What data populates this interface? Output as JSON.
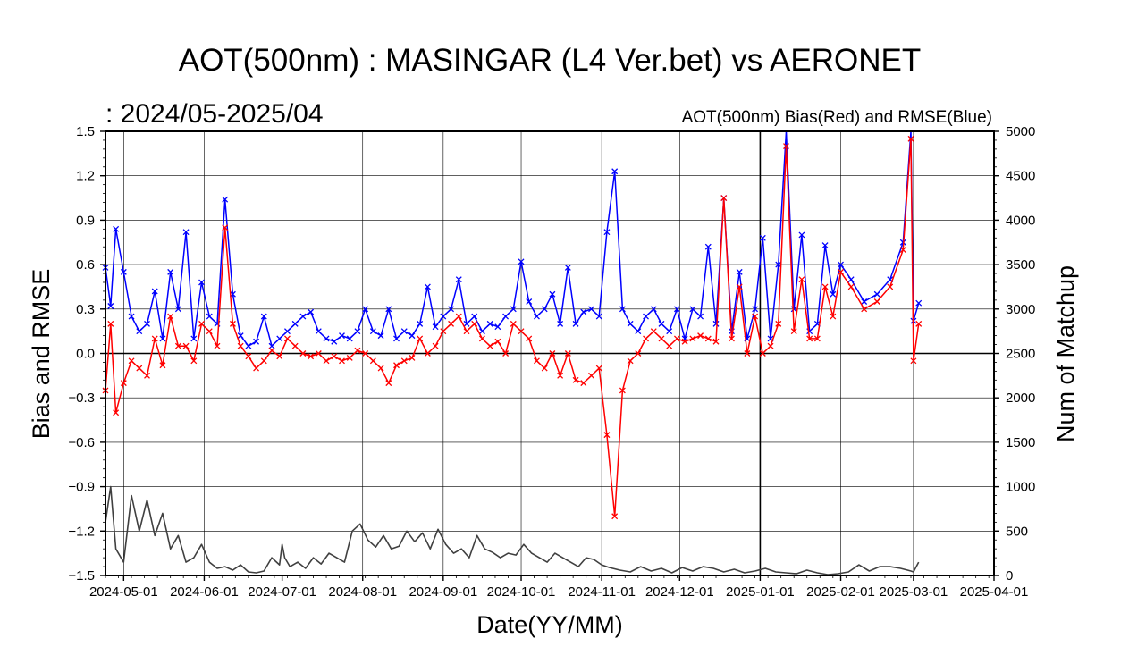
{
  "chart_data": {
    "type": "line",
    "title": "AOT(500nm) : MASINGAR (L4 Ver.bet) vs AERONET",
    "subtitle": ":  2024/05-2025/04",
    "right_label": "AOT(500nm) Bias(Red) and RMSE(Blue)",
    "xlabel": "Date(YY/MM)",
    "ylabel": "Bias and RMSE",
    "y2label": "Num of Matchup",
    "xlim": [
      "2024-04-24",
      "2025-04-01"
    ],
    "ylim": [
      -1.5,
      1.5
    ],
    "y2lim": [
      0,
      5000
    ],
    "yticks": [
      "1.5",
      "1.2",
      "0.9",
      "0.6",
      "0.3",
      "0.0",
      "−0.3",
      "−0.6",
      "−0.9",
      "−1.2",
      "−1.5"
    ],
    "y2ticks": [
      "5000",
      "4500",
      "4000",
      "3500",
      "3000",
      "2500",
      "2000",
      "1500",
      "1000",
      "500",
      "0"
    ],
    "xticks": [
      "2024-05-01",
      "2024-06-01",
      "2024-07-01",
      "2024-08-01",
      "2024-09-01",
      "2024-10-01",
      "2024-11-01",
      "2024-12-01",
      "2025-01-01",
      "2025-02-01",
      "2025-03-01",
      "2025-04-01"
    ],
    "grid": true,
    "colors": {
      "bias": "#ff0000",
      "rmse": "#0000ff",
      "matchup": "#404040"
    },
    "series": [
      {
        "key": "rmse",
        "axis": "left",
        "x": [
          "2024-04-24",
          "2024-04-26",
          "2024-04-28",
          "2024-05-01",
          "2024-05-04",
          "2024-05-07",
          "2024-05-10",
          "2024-05-13",
          "2024-05-16",
          "2024-05-19",
          "2024-05-22",
          "2024-05-25",
          "2024-05-28",
          "2024-05-31",
          "2024-06-03",
          "2024-06-06",
          "2024-06-09",
          "2024-06-12",
          "2024-06-15",
          "2024-06-18",
          "2024-06-21",
          "2024-06-24",
          "2024-06-27",
          "2024-06-30",
          "2024-07-03",
          "2024-07-06",
          "2024-07-09",
          "2024-07-12",
          "2024-07-15",
          "2024-07-18",
          "2024-07-21",
          "2024-07-24",
          "2024-07-27",
          "2024-07-30",
          "2024-08-02",
          "2024-08-05",
          "2024-08-08",
          "2024-08-11",
          "2024-08-14",
          "2024-08-17",
          "2024-08-20",
          "2024-08-23",
          "2024-08-26",
          "2024-08-29",
          "2024-09-01",
          "2024-09-04",
          "2024-09-07",
          "2024-09-10",
          "2024-09-13",
          "2024-09-16",
          "2024-09-19",
          "2024-09-22",
          "2024-09-25",
          "2024-09-28",
          "2024-10-01",
          "2024-10-04",
          "2024-10-07",
          "2024-10-10",
          "2024-10-13",
          "2024-10-16",
          "2024-10-19",
          "2024-10-22",
          "2024-10-25",
          "2024-10-28",
          "2024-10-31",
          "2024-11-03",
          "2024-11-06",
          "2024-11-09",
          "2024-11-12",
          "2024-11-15",
          "2024-11-18",
          "2024-11-21",
          "2024-11-24",
          "2024-11-27",
          "2024-11-30",
          "2024-12-03",
          "2024-12-06",
          "2024-12-09",
          "2024-12-12",
          "2024-12-15",
          "2024-12-18",
          "2024-12-21",
          "2024-12-24",
          "2024-12-27",
          "2024-12-30",
          "2025-01-02",
          "2025-01-05",
          "2025-01-08",
          "2025-01-11",
          "2025-01-14",
          "2025-01-17",
          "2025-01-20",
          "2025-01-23",
          "2025-01-26",
          "2025-01-29",
          "2025-02-01",
          "2025-02-05",
          "2025-02-10",
          "2025-02-15",
          "2025-02-20",
          "2025-02-25",
          "2025-02-28",
          "2025-03-01",
          "2025-03-03"
        ],
        "y": [
          0.58,
          0.32,
          0.84,
          0.55,
          0.25,
          0.15,
          0.2,
          0.42,
          0.1,
          0.55,
          0.3,
          0.82,
          0.1,
          0.48,
          0.25,
          0.2,
          1.04,
          0.4,
          0.12,
          0.05,
          0.08,
          0.25,
          0.05,
          0.1,
          0.15,
          0.2,
          0.25,
          0.28,
          0.15,
          0.1,
          0.08,
          0.12,
          0.1,
          0.15,
          0.3,
          0.15,
          0.12,
          0.3,
          0.1,
          0.15,
          0.12,
          0.2,
          0.45,
          0.18,
          0.25,
          0.3,
          0.5,
          0.2,
          0.25,
          0.15,
          0.2,
          0.18,
          0.25,
          0.3,
          0.62,
          0.35,
          0.25,
          0.3,
          0.4,
          0.2,
          0.58,
          0.2,
          0.28,
          0.3,
          0.25,
          0.82,
          1.23,
          0.3,
          0.2,
          0.15,
          0.25,
          0.3,
          0.2,
          0.15,
          0.3,
          0.1,
          0.3,
          0.25,
          0.72,
          0.2,
          1.05,
          0.15,
          0.55,
          0.1,
          0.3,
          0.78,
          0.1,
          0.6,
          1.5,
          0.3,
          0.8,
          0.15,
          0.2,
          0.73,
          0.4,
          0.6,
          0.5,
          0.35,
          0.4,
          0.5,
          0.75,
          1.5,
          0.22,
          0.34
        ]
      },
      {
        "key": "bias",
        "axis": "left",
        "x": [
          "2024-04-24",
          "2024-04-26",
          "2024-04-28",
          "2024-05-01",
          "2024-05-04",
          "2024-05-07",
          "2024-05-10",
          "2024-05-13",
          "2024-05-16",
          "2024-05-19",
          "2024-05-22",
          "2024-05-25",
          "2024-05-28",
          "2024-05-31",
          "2024-06-03",
          "2024-06-06",
          "2024-06-09",
          "2024-06-12",
          "2024-06-15",
          "2024-06-18",
          "2024-06-21",
          "2024-06-24",
          "2024-06-27",
          "2024-06-30",
          "2024-07-03",
          "2024-07-06",
          "2024-07-09",
          "2024-07-12",
          "2024-07-15",
          "2024-07-18",
          "2024-07-21",
          "2024-07-24",
          "2024-07-27",
          "2024-07-30",
          "2024-08-02",
          "2024-08-05",
          "2024-08-08",
          "2024-08-11",
          "2024-08-14",
          "2024-08-17",
          "2024-08-20",
          "2024-08-23",
          "2024-08-26",
          "2024-08-29",
          "2024-09-01",
          "2024-09-04",
          "2024-09-07",
          "2024-09-10",
          "2024-09-13",
          "2024-09-16",
          "2024-09-19",
          "2024-09-22",
          "2024-09-25",
          "2024-09-28",
          "2024-10-01",
          "2024-10-04",
          "2024-10-07",
          "2024-10-10",
          "2024-10-13",
          "2024-10-16",
          "2024-10-19",
          "2024-10-22",
          "2024-10-25",
          "2024-10-28",
          "2024-10-31",
          "2024-11-03",
          "2024-11-06",
          "2024-11-09",
          "2024-11-12",
          "2024-11-15",
          "2024-11-18",
          "2024-11-21",
          "2024-11-24",
          "2024-11-27",
          "2024-11-30",
          "2024-12-03",
          "2024-12-06",
          "2024-12-09",
          "2024-12-12",
          "2024-12-15",
          "2024-12-18",
          "2024-12-21",
          "2024-12-24",
          "2024-12-27",
          "2024-12-30",
          "2025-01-02",
          "2025-01-05",
          "2025-01-08",
          "2025-01-11",
          "2025-01-14",
          "2025-01-17",
          "2025-01-20",
          "2025-01-23",
          "2025-01-26",
          "2025-01-29",
          "2025-02-01",
          "2025-02-05",
          "2025-02-10",
          "2025-02-15",
          "2025-02-20",
          "2025-02-25",
          "2025-02-28",
          "2025-03-01",
          "2025-03-03"
        ],
        "y": [
          -0.25,
          0.2,
          -0.4,
          -0.2,
          -0.05,
          -0.1,
          -0.15,
          0.1,
          -0.08,
          0.25,
          0.05,
          0.05,
          -0.05,
          0.2,
          0.15,
          0.05,
          0.85,
          0.2,
          0.05,
          -0.02,
          -0.1,
          -0.05,
          0.02,
          -0.02,
          0.1,
          0.05,
          0.0,
          -0.02,
          0.0,
          -0.05,
          -0.02,
          -0.05,
          -0.03,
          0.02,
          0.0,
          -0.05,
          -0.1,
          -0.2,
          -0.08,
          -0.05,
          -0.03,
          0.1,
          0.0,
          0.05,
          0.15,
          0.2,
          0.25,
          0.15,
          0.2,
          0.1,
          0.05,
          0.08,
          0.0,
          0.2,
          0.15,
          0.1,
          -0.05,
          -0.1,
          0.0,
          -0.15,
          0.0,
          -0.18,
          -0.2,
          -0.15,
          -0.1,
          -0.55,
          -1.1,
          -0.25,
          -0.05,
          0.0,
          0.1,
          0.15,
          0.1,
          0.05,
          0.1,
          0.08,
          0.1,
          0.12,
          0.1,
          0.08,
          1.05,
          0.1,
          0.45,
          0.0,
          0.25,
          0.0,
          0.05,
          0.2,
          1.4,
          0.15,
          0.5,
          0.1,
          0.1,
          0.45,
          0.25,
          0.55,
          0.45,
          0.3,
          0.35,
          0.45,
          0.7,
          1.45,
          -0.05,
          0.2
        ]
      },
      {
        "key": "matchup",
        "axis": "right",
        "x": [
          "2024-04-24",
          "2024-04-26",
          "2024-04-28",
          "2024-05-01",
          "2024-05-04",
          "2024-05-07",
          "2024-05-10",
          "2024-05-13",
          "2024-05-16",
          "2024-05-19",
          "2024-05-22",
          "2024-05-25",
          "2024-05-28",
          "2024-05-31",
          "2024-06-03",
          "2024-06-06",
          "2024-06-09",
          "2024-06-12",
          "2024-06-15",
          "2024-06-18",
          "2024-06-21",
          "2024-06-24",
          "2024-06-27",
          "2024-06-30",
          "2024-07-01",
          "2024-07-02",
          "2024-07-04",
          "2024-07-07",
          "2024-07-10",
          "2024-07-13",
          "2024-07-16",
          "2024-07-19",
          "2024-07-22",
          "2024-07-25",
          "2024-07-28",
          "2024-07-31",
          "2024-08-03",
          "2024-08-06",
          "2024-08-09",
          "2024-08-12",
          "2024-08-15",
          "2024-08-18",
          "2024-08-21",
          "2024-08-24",
          "2024-08-27",
          "2024-08-30",
          "2024-09-02",
          "2024-09-05",
          "2024-09-08",
          "2024-09-11",
          "2024-09-14",
          "2024-09-17",
          "2024-09-20",
          "2024-09-23",
          "2024-09-26",
          "2024-09-29",
          "2024-10-02",
          "2024-10-05",
          "2024-10-08",
          "2024-10-11",
          "2024-10-14",
          "2024-10-17",
          "2024-10-20",
          "2024-10-23",
          "2024-10-26",
          "2024-10-29",
          "2024-11-01",
          "2024-11-04",
          "2024-11-08",
          "2024-11-12",
          "2024-11-16",
          "2024-11-20",
          "2024-11-24",
          "2024-11-28",
          "2024-12-02",
          "2024-12-06",
          "2024-12-10",
          "2024-12-14",
          "2024-12-18",
          "2024-12-22",
          "2024-12-26",
          "2024-12-30",
          "2025-01-03",
          "2025-01-07",
          "2025-01-11",
          "2025-01-15",
          "2025-01-19",
          "2025-01-23",
          "2025-01-27",
          "2025-01-31",
          "2025-02-04",
          "2025-02-08",
          "2025-02-12",
          "2025-02-16",
          "2025-02-20",
          "2025-02-24",
          "2025-02-28",
          "2025-03-01",
          "2025-03-03"
        ],
        "y": [
          600,
          1000,
          300,
          150,
          900,
          500,
          850,
          450,
          700,
          300,
          450,
          150,
          200,
          350,
          150,
          80,
          100,
          60,
          120,
          40,
          30,
          50,
          200,
          120,
          350,
          200,
          100,
          150,
          80,
          200,
          130,
          250,
          200,
          150,
          500,
          580,
          400,
          320,
          450,
          300,
          330,
          500,
          380,
          480,
          300,
          520,
          350,
          250,
          300,
          200,
          450,
          300,
          260,
          200,
          250,
          230,
          350,
          250,
          200,
          150,
          250,
          200,
          150,
          100,
          200,
          180,
          120,
          90,
          60,
          40,
          100,
          50,
          80,
          30,
          90,
          50,
          100,
          80,
          40,
          70,
          30,
          50,
          80,
          40,
          30,
          20,
          60,
          30,
          10,
          20,
          40,
          120,
          50,
          100,
          100,
          80,
          50,
          40,
          150
        ]
      }
    ]
  }
}
